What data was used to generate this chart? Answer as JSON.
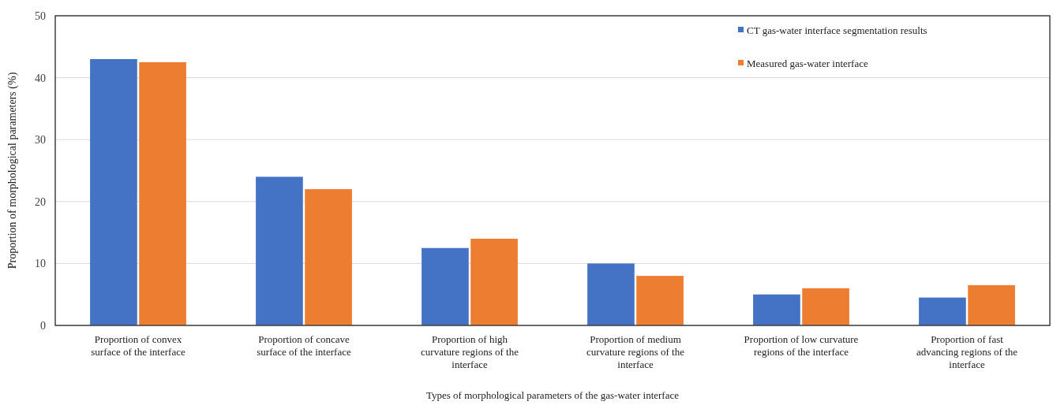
{
  "chart_data": {
    "type": "bar",
    "xlabel": "Types of morphological parameters of the gas-water interface",
    "ylabel": "Proportion of morphological parameters (%)",
    "categories": [
      "Proportion of convex surface of the interface",
      "Proportion of concave surface of the interface",
      "Proportion of high curvature regions of the interface",
      "Proportion of medium curvature regions of the interface",
      "Proportion of low curvature regions of the interface",
      "Proportion of fast advancing regions of the interface"
    ],
    "series": [
      {
        "name": "CT gas-water interface segmentation results",
        "color": "#4472c4",
        "values": [
          43,
          24,
          12.5,
          10,
          5,
          4.5
        ]
      },
      {
        "name": "Measured gas-water interface",
        "color": "#ed7d31",
        "values": [
          42.5,
          22,
          14,
          8,
          6,
          6.5
        ]
      }
    ],
    "ylim": [
      0,
      50
    ],
    "yticks": [
      0,
      10,
      20,
      30,
      40,
      50
    ],
    "grid": "y",
    "legend": "top right"
  }
}
